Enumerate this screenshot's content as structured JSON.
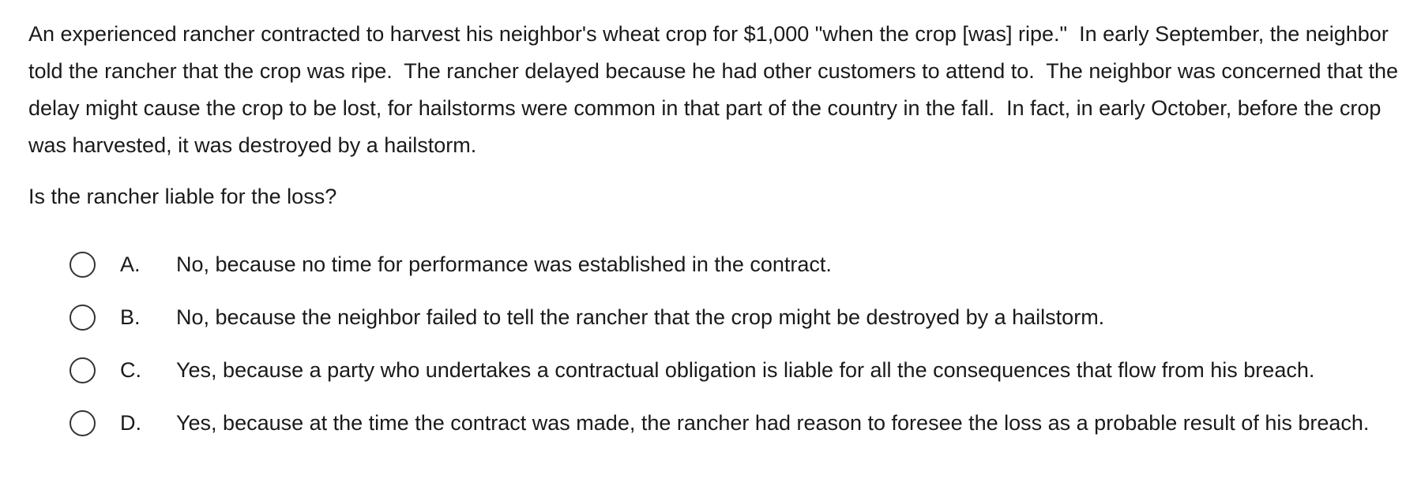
{
  "question": {
    "stem": "An experienced rancher contracted to harvest his neighbor's wheat crop for $1,000 \"when the crop [was] ripe.\"  In early September, the neighbor told the rancher that the crop was ripe.  The rancher delayed because he had other customers to attend to.  The neighbor was concerned that the delay might cause the crop to be lost, for hailstorms were common in that part of the country in the fall.  In fact, in early October, before the crop was harvested, it was destroyed by a hailstorm.",
    "prompt": "Is the rancher liable for the loss?",
    "choices": [
      {
        "letter": "A.",
        "text": "No, because no time for performance was established in the contract."
      },
      {
        "letter": "B.",
        "text": "No, because the neighbor failed to tell the rancher that the crop might be destroyed by a hailstorm."
      },
      {
        "letter": "C.",
        "text": "Yes, because a party who undertakes a contractual obligation is liable for all the consequences that flow from his breach."
      },
      {
        "letter": "D.",
        "text": "Yes, because at the time the contract was made, the rancher had reason to foresee the loss as a probable result of his breach."
      }
    ]
  }
}
